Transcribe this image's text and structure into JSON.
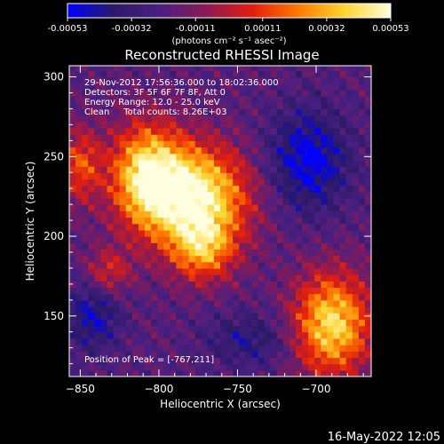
{
  "chart_data": {
    "type": "heatmap",
    "title": "Reconstructed RHESSI Image",
    "xlabel": "Heliocentric X (arcsec)",
    "ylabel": "Heliocentric Y (arcsec)",
    "xlim": [
      -857,
      -665
    ],
    "ylim": [
      112,
      307
    ],
    "xticks": [
      -850,
      -800,
      -750,
      -700
    ],
    "xtick_labels": [
      "-850",
      "-800",
      "-750",
      "-700"
    ],
    "yticks": [
      150,
      200,
      250,
      300
    ],
    "ytick_labels": [
      "150",
      "200",
      "250",
      "300"
    ],
    "colorbar": {
      "vmin": -0.00053,
      "vmax": 0.00053,
      "tick_values": [
        -0.00053,
        -0.00032,
        -0.00011,
        0.00011,
        0.00032,
        0.00053
      ],
      "tick_labels": [
        "-0.00053",
        "-0.00032",
        "-0.00011",
        "0.00011",
        "0.00032",
        "0.00053"
      ],
      "unit_label": "(photons cm⁻² s⁻¹ asec⁻²)",
      "colors": [
        "#0000ff",
        "#2b1a66",
        "#4a1f82",
        "#8a1a55",
        "#e01e10",
        "#ff7a00",
        "#ffd530",
        "#ffffe0"
      ]
    },
    "sources": [
      {
        "x": -778,
        "y": 225,
        "sx": 24,
        "sy": 22,
        "amp": 1.0
      },
      {
        "x": -808,
        "y": 240,
        "sx": 16,
        "sy": 22,
        "amp": 0.75
      },
      {
        "x": -772,
        "y": 192,
        "sx": 14,
        "sy": 14,
        "amp": 0.55
      },
      {
        "x": -690,
        "y": 145,
        "sx": 17,
        "sy": 22,
        "amp": 0.85
      },
      {
        "x": -850,
        "y": 245,
        "sx": 9,
        "sy": 16,
        "amp": 0.45
      },
      {
        "x": -832,
        "y": 178,
        "sx": 10,
        "sy": 10,
        "amp": 0.35
      },
      {
        "x": -705,
        "y": 248,
        "sx": 18,
        "sy": 22,
        "amp": -0.45
      },
      {
        "x": -842,
        "y": 150,
        "sx": 12,
        "sy": 15,
        "amp": -0.35
      },
      {
        "x": -742,
        "y": 135,
        "sx": 20,
        "sy": 12,
        "amp": -0.25
      }
    ],
    "peak": {
      "x": -767,
      "y": 211
    },
    "annotations": [
      "29-Nov-2012 17:56:36.000 to 18:02:36.000",
      "Detectors: 3F 5F 6F 7F 8F, Att 0",
      "Energy Range: 12.0 - 25.0 keV",
      "Clean     Total counts: 8.26E+03"
    ],
    "peak_label": "Position of Peak = [-767,211]"
  },
  "timestamp": "16-May-2022 12:05"
}
